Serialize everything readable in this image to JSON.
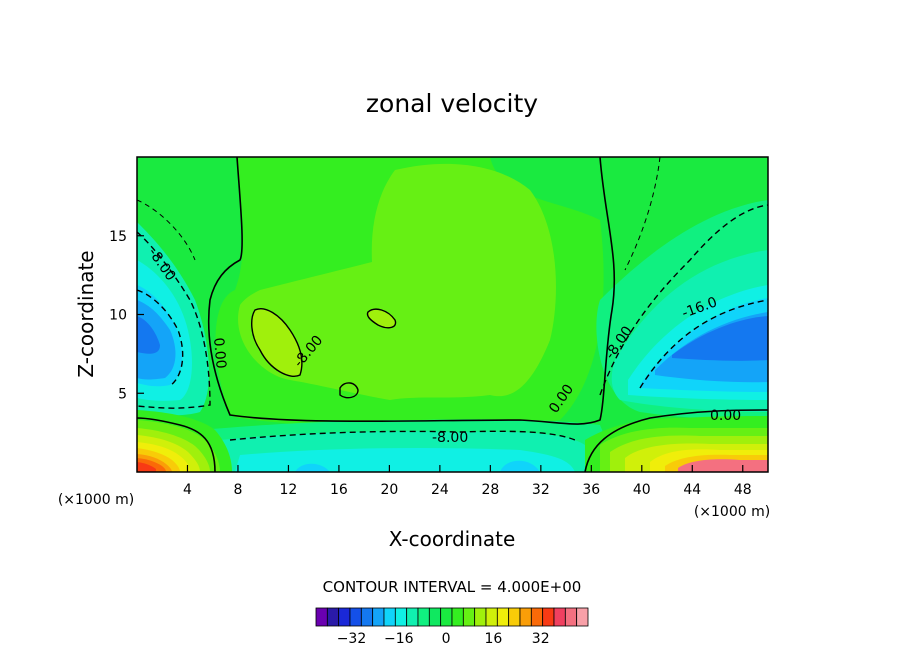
{
  "chart_data": {
    "type": "contour",
    "title": "zonal velocity",
    "xlabel": "X-coordinate",
    "ylabel": "Z-coordinate",
    "x_unit": "(×1000 m)",
    "y_unit": "(×1000 m)",
    "xlim": [
      0,
      50
    ],
    "ylim": [
      0,
      20
    ],
    "xticks": [
      "4",
      "8",
      "12",
      "16",
      "20",
      "24",
      "28",
      "32",
      "36",
      "40",
      "44",
      "48"
    ],
    "yticks": [
      "5",
      "10",
      "15"
    ],
    "contour_interval_text": "CONTOUR INTERVAL = 4.000E+00",
    "contour_interval": 4,
    "contour_labels": [
      "-8.00",
      "0.00",
      "-8.00",
      "-8.00",
      "0.00",
      "-16.0",
      "-8.00",
      "0.00",
      "-8.00"
    ],
    "colorbar": {
      "ticks": [
        "-32",
        "-16",
        "0",
        "16",
        "32"
      ],
      "colors": [
        "#6a00b0",
        "#2a1aa8",
        "#1a28d8",
        "#1450e8",
        "#1478f0",
        "#14a4f8",
        "#10d4fa",
        "#10f0e4",
        "#10f0b0",
        "#10f080",
        "#10e860",
        "#1aea40",
        "#34ee20",
        "#66f014",
        "#a0f00c",
        "#d0f00a",
        "#f0ee0a",
        "#f8cc08",
        "#fa9e08",
        "#fa6a08",
        "#f83a14",
        "#f04060",
        "#f47080",
        "#f8a0a8"
      ]
    },
    "features": [
      {
        "kind": "min",
        "x": 1,
        "z": 8.5,
        "value": -24
      },
      {
        "kind": "min",
        "x": 47,
        "z": 8.5,
        "value": -24
      },
      {
        "kind": "max",
        "x": 1.5,
        "z": 0.5,
        "value": 32
      },
      {
        "kind": "max",
        "x": 47,
        "z": 0.5,
        "value": 28
      },
      {
        "kind": "min",
        "x": 25,
        "z": 0.8,
        "value": -12
      },
      {
        "kind": "max",
        "x": 25,
        "z": 13,
        "value": 6
      },
      {
        "kind": "max",
        "x": 11,
        "z": 8.5,
        "value": 10
      },
      {
        "kind": "max",
        "x": 18,
        "z": 10,
        "value": 9
      },
      {
        "kind": "min",
        "x": 16.5,
        "z": 5,
        "value": 2
      }
    ]
  }
}
